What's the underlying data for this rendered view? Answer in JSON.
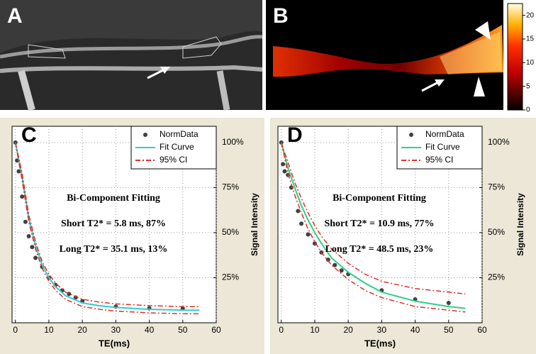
{
  "panel_labels": [
    "A",
    "B",
    "C",
    "D"
  ],
  "colorbar": {
    "lim": [
      0,
      22.5
    ],
    "ticks": [
      0,
      5,
      10,
      15,
      20
    ]
  },
  "chart_data": [
    {
      "type": "line",
      "xlabel": "TE(ms)",
      "ylabel": "Signal Intensity",
      "xlim": [
        -1,
        60
      ],
      "xticks": [
        0,
        10,
        20,
        30,
        40,
        50,
        60
      ],
      "ylim": [
        0,
        109
      ],
      "yticks": [
        {
          "value": 25,
          "label": "25%"
        },
        {
          "value": 50,
          "label": "50%"
        },
        {
          "value": 75,
          "label": "75%"
        },
        {
          "value": 100,
          "label": "100%"
        }
      ],
      "y_axis_side": "right",
      "grid": true,
      "legend": "top-right",
      "annotations": [
        "Bi-Component Fitting",
        "Short T2* = 5.8 ms, 87%",
        "Long T2* = 35.1 ms, 13%"
      ],
      "series": [
        {
          "name": "NormData",
          "kind": "points",
          "color": "#404040",
          "x": [
            0,
            0.5,
            1,
            2,
            3,
            4,
            5,
            6,
            8,
            10,
            12,
            14,
            16,
            18,
            20,
            30,
            40,
            50
          ],
          "values": [
            100,
            90,
            84,
            70,
            56,
            48,
            42,
            36,
            31,
            25,
            21,
            18,
            16,
            14,
            12,
            9,
            8,
            8
          ]
        },
        {
          "name": "Fit Curve",
          "kind": "line",
          "color": "#33cccc",
          "x": [
            0,
            2,
            4,
            6,
            8,
            10,
            12,
            15,
            20,
            25,
            30,
            40,
            50,
            55
          ],
          "values": [
            100,
            81,
            58,
            43,
            32,
            25,
            20,
            15,
            11,
            9.5,
            8.5,
            7.5,
            7,
            7
          ]
        },
        {
          "name": "95% CI",
          "kind": "band-lines",
          "color": "#e0302a",
          "x": [
            0,
            2,
            4,
            6,
            8,
            10,
            12,
            15,
            20,
            25,
            30,
            40,
            50,
            55
          ],
          "upper": [
            100,
            83,
            60,
            45,
            34,
            27,
            22,
            17,
            13,
            11.5,
            10.5,
            9.5,
            9,
            9
          ],
          "lower": [
            100,
            79,
            56,
            41,
            30,
            23,
            18,
            13,
            9,
            7.5,
            6.5,
            5.5,
            5,
            5
          ]
        }
      ]
    },
    {
      "type": "line",
      "xlabel": "TE(ms)",
      "ylabel": "Signal Intensity",
      "xlim": [
        -1,
        60
      ],
      "xticks": [
        0,
        10,
        20,
        30,
        40,
        50,
        60
      ],
      "ylim": [
        0,
        109
      ],
      "yticks": [
        {
          "value": 25,
          "label": "25%"
        },
        {
          "value": 50,
          "label": "50%"
        },
        {
          "value": 75,
          "label": "75%"
        },
        {
          "value": 100,
          "label": "100%"
        }
      ],
      "y_axis_side": "right",
      "grid": true,
      "legend": "top-right",
      "annotations": [
        "Bi-Component Fitting",
        "Short T2* = 10.9 ms, 77%",
        "Long T2* = 48.5 ms, 23%"
      ],
      "series": [
        {
          "name": "NormData",
          "kind": "points",
          "color": "#404040",
          "x": [
            0,
            0.5,
            1,
            2,
            3,
            5,
            6,
            8,
            10,
            12,
            14,
            16,
            18,
            20,
            30,
            40,
            50
          ],
          "values": [
            100,
            88,
            84,
            82,
            75,
            62,
            55,
            49,
            44,
            39,
            35,
            32,
            29,
            27,
            18,
            13,
            11
          ]
        },
        {
          "name": "Fit Curve",
          "kind": "line",
          "color": "#2fd08a",
          "x": [
            0,
            2,
            4,
            6,
            8,
            10,
            12,
            15,
            20,
            25,
            30,
            40,
            50,
            55
          ],
          "values": [
            100,
            86,
            75,
            65,
            57,
            50,
            44,
            36,
            28,
            22,
            17,
            12,
            9,
            8
          ]
        },
        {
          "name": "95% CI",
          "kind": "band-lines",
          "color": "#e0302a",
          "x": [
            0,
            2,
            4,
            6,
            8,
            10,
            12,
            15,
            20,
            25,
            30,
            40,
            50,
            55
          ],
          "upper": [
            100,
            89,
            78,
            69,
            61,
            54,
            48,
            41,
            33,
            27,
            23,
            19,
            17,
            16
          ],
          "lower": [
            100,
            83,
            71,
            61,
            52,
            45,
            39,
            32,
            24,
            18,
            14,
            9,
            7,
            6
          ]
        }
      ]
    }
  ]
}
